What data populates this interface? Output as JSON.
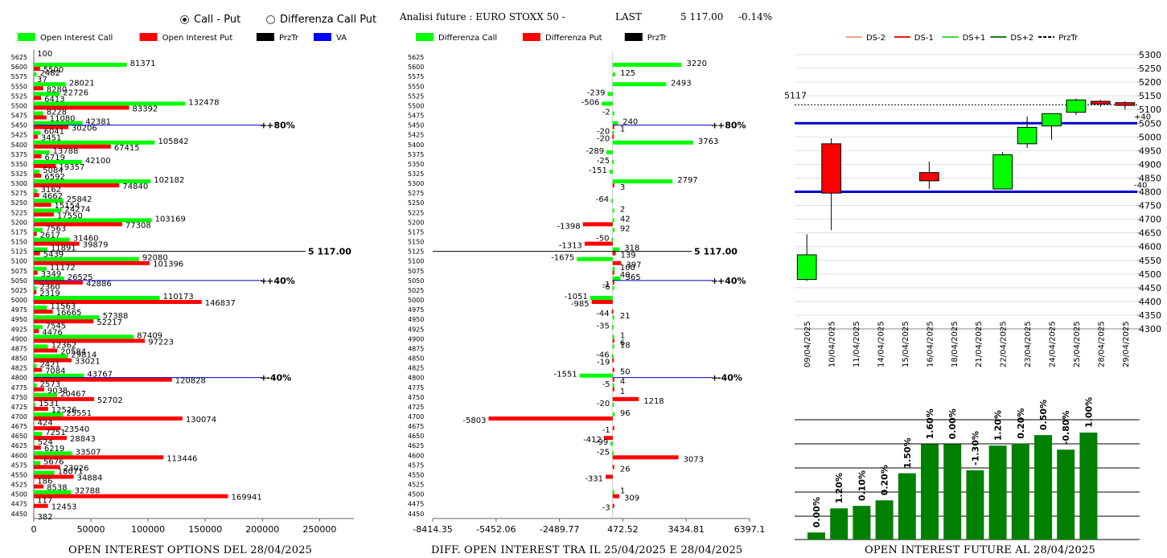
{
  "controls": {
    "radio_call_put": "Call - Put",
    "radio_diff": "Differenza Call Put",
    "selected": "call_put"
  },
  "header": {
    "title": "Analisi future : EURO STOXX 50 -",
    "last_label": "LAST",
    "last_value": "5 117.00",
    "change": "-0.14%"
  },
  "colors": {
    "call": "#00ff00",
    "put": "#ff0000",
    "prztr": "#000000",
    "va": "#0000ff",
    "future": "#008000",
    "lineblue": "#0000cc"
  },
  "chart_data": [
    {
      "type": "bar",
      "orientation": "horizontal",
      "title": "OPEN INTEREST OPTIONS DEL 28/04/2025",
      "legend": [
        "Open Interest Call",
        "Open Interest Put",
        "PrzTr",
        "VA"
      ],
      "strikes": [
        "5625",
        "5600",
        "5575",
        "5550",
        "5525",
        "5500",
        "5475",
        "5450",
        "5425",
        "5400",
        "5375",
        "5350",
        "5325",
        "5300",
        "5275",
        "5250",
        "5225",
        "5200",
        "5175",
        "5150",
        "5125",
        "5100",
        "5075",
        "5050",
        "5025",
        "5000",
        "4975",
        "4950",
        "4925",
        "4900",
        "4875",
        "4850",
        "4825",
        "4800",
        "4775",
        "4750",
        "4725",
        "4700",
        "4675",
        "4650",
        "4625",
        "4600",
        "4575",
        "4550",
        "4525",
        "4500",
        "4475",
        "4450"
      ],
      "series": [
        {
          "name": "Open Interest Call",
          "values": [
            100,
            81371,
            2482,
            28021,
            22726,
            132478,
            8228,
            42381,
            6041,
            105842,
            13788,
            42100,
            5084,
            102182,
            3162,
            25842,
            24274,
            103169,
            7563,
            31460,
            11891,
            92080,
            11172,
            26525,
            2360,
            110173,
            11563,
            57388,
            7545,
            87409,
            12362,
            29814,
            2421,
            43767,
            2573,
            20467,
            1531,
            25551,
            424,
            7251,
            524,
            33507,
            5676,
            18071,
            186,
            32788,
            117,
            0
          ]
        },
        {
          "name": "Open Interest Put",
          "values": [
            0,
            5500,
            37,
            8280,
            6413,
            83392,
            11080,
            30206,
            3451,
            67415,
            6719,
            19357,
            6592,
            74840,
            4662,
            15154,
            17550,
            77308,
            2617,
            39879,
            5439,
            101396,
            3349,
            42886,
            2319,
            146837,
            16665,
            52217,
            4476,
            97223,
            20584,
            33021,
            7084,
            120828,
            9038,
            52702,
            12526,
            130074,
            23540,
            28843,
            6219,
            113446,
            23026,
            34884,
            8538,
            169941,
            12453,
            382
          ]
        }
      ],
      "xticks": [
        "0",
        "50000",
        "100000",
        "150000",
        "200000",
        "250000"
      ],
      "xlim": [
        0,
        280000
      ],
      "annotations": [
        {
          "strike": "5450",
          "value": 200000,
          "label": "+80%"
        },
        {
          "strike": "5050",
          "value": 200000,
          "label": "+40%"
        },
        {
          "strike": "4800",
          "value": 200000,
          "label": "-40%"
        },
        {
          "strike": "5125",
          "value": 220000,
          "label": "5 117.00"
        }
      ]
    },
    {
      "type": "bar",
      "orientation": "horizontal",
      "title": "DIFF. OPEN INTEREST TRA IL 25/04/2025 E 28/04/2025",
      "legend": [
        "Differenza Call",
        "Differenza Put",
        "PrzTr"
      ],
      "strikes": [
        "5625",
        "5600",
        "5575",
        "5550",
        "5525",
        "5500",
        "5475",
        "5450",
        "5425",
        "5400",
        "5375",
        "5350",
        "5325",
        "5300",
        "5275",
        "5250",
        "5225",
        "5200",
        "5175",
        "5150",
        "5125",
        "5100",
        "5075",
        "5050",
        "5025",
        "5000",
        "4975",
        "4950",
        "4925",
        "4900",
        "4875",
        "4850",
        "4825",
        "4800",
        "4775",
        "4750",
        "4725",
        "4700",
        "4675",
        "4650",
        "4625",
        "4600",
        "4575",
        "4550",
        "4525",
        "4500",
        "4475",
        "4450"
      ],
      "labels_call": [
        null,
        "3220",
        "125",
        "2493",
        "-239",
        "-506",
        "-2",
        "240",
        "-20",
        "3763",
        "-289",
        "-25",
        "-151",
        "2797",
        null,
        "-64",
        "2",
        "42",
        "92",
        "-50",
        "318",
        "-1675",
        "100",
        "365",
        "-6",
        "-1051",
        null,
        "21",
        "-35",
        "1",
        "18",
        "-46",
        null,
        "-1551",
        "-5",
        null,
        "-20",
        "96",
        null,
        null,
        "-99",
        "-25",
        null,
        null,
        null,
        "1",
        null,
        null
      ],
      "labels_put": [
        null,
        null,
        null,
        null,
        null,
        null,
        null,
        "1",
        "-20",
        null,
        null,
        null,
        null,
        "3",
        null,
        null,
        null,
        "-1398",
        null,
        "-1313",
        "139",
        "397",
        "40",
        "-1",
        null,
        "-985",
        "-44",
        null,
        null,
        "6",
        null,
        "-19",
        "50",
        "4",
        "1",
        "1218",
        null,
        "-5803",
        "-1",
        "-412",
        null,
        "3073",
        "26",
        "-331",
        null,
        "309",
        "-3",
        null
      ],
      "call_values": [
        0,
        3220,
        125,
        2493,
        -239,
        -506,
        -2,
        240,
        -20,
        3763,
        -289,
        -25,
        -151,
        2797,
        0,
        -64,
        2,
        42,
        92,
        -50,
        318,
        -1675,
        100,
        365,
        -6,
        -1051,
        0,
        21,
        -35,
        1,
        18,
        -46,
        0,
        -1551,
        -5,
        0,
        -20,
        96,
        0,
        0,
        -99,
        -25,
        0,
        0,
        0,
        1,
        0,
        0
      ],
      "put_values": [
        0,
        0,
        0,
        0,
        0,
        0,
        0,
        1,
        -20,
        0,
        0,
        0,
        0,
        3,
        0,
        0,
        0,
        -1398,
        0,
        -1313,
        139,
        397,
        40,
        -1,
        0,
        -985,
        -44,
        0,
        0,
        6,
        0,
        -19,
        50,
        4,
        1,
        1218,
        0,
        -5803,
        -1,
        -412,
        0,
        3073,
        26,
        -331,
        0,
        309,
        -3,
        0
      ],
      "xticks": [
        "-8414.35",
        "-5452.06",
        "-2489.77",
        "472.52",
        "3434.81",
        "6397.1"
      ],
      "xlim": [
        -8414.35,
        6397.1
      ],
      "annotations": [
        {
          "strike": "5450",
          "label": "+80%"
        },
        {
          "strike": "5050",
          "label": "+40%"
        },
        {
          "strike": "4800",
          "label": "-40%"
        },
        {
          "strike": "5125",
          "label": "5 117.00"
        }
      ]
    },
    {
      "type": "candlestick",
      "legend": [
        "DS-2",
        "DS-1",
        "DS+1",
        "DS+2",
        "PrzTr"
      ],
      "dates": [
        "09/04/2025",
        "10/04/2025",
        "11/04/2025",
        "14/04/2025",
        "15/04/2025",
        "16/04/2025",
        "18/04/2025",
        "21/04/2025",
        "22/04/2025",
        "23/04/2025",
        "24/04/2025",
        "25/04/2025",
        "28/04/2025",
        "29/04/2025"
      ],
      "candles": [
        {
          "date": "09/04/2025",
          "open": 4480,
          "close": 4570,
          "high": 4645,
          "low": 4475
        },
        {
          "date": "10/04/2025",
          "open": 4975,
          "close": 4795,
          "high": 4995,
          "low": 4660
        },
        {
          "date": "16/04/2025",
          "open": 4870,
          "close": 4840,
          "high": 4910,
          "low": 4810
        },
        {
          "date": "22/04/2025",
          "open": 4810,
          "close": 4935,
          "high": 4945,
          "low": 4810
        },
        {
          "date": "23/04/2025",
          "open": 4975,
          "close": 5035,
          "high": 5075,
          "low": 4960
        },
        {
          "date": "24/04/2025",
          "open": 5040,
          "close": 5085,
          "high": 5085,
          "low": 4990
        },
        {
          "date": "25/04/2025",
          "open": 5090,
          "close": 5135,
          "high": 5140,
          "low": 5080
        },
        {
          "date": "28/04/2025",
          "open": 5130,
          "close": 5120,
          "high": 5135,
          "low": 5110
        },
        {
          "date": "29/04/2025",
          "open": 5125,
          "close": 5115,
          "high": 5130,
          "low": 5100
        }
      ],
      "yticks": [
        "5300",
        "5250",
        "5200",
        "5150",
        "5100",
        "5050",
        "5000",
        "4950",
        "4900",
        "4850",
        "4800",
        "4750",
        "4700",
        "4650",
        "4600",
        "4550",
        "4500",
        "4450",
        "4400",
        "4350",
        "4300"
      ],
      "ylim": [
        4300,
        5300
      ],
      "last_label": "5117",
      "last": 5117,
      "hlines": [
        {
          "value": 5050,
          "label": "+40"
        },
        {
          "value": 4800,
          "label": "-40"
        }
      ]
    },
    {
      "type": "bar",
      "title": "OPEN INTEREST FUTURE AL 28/04/2025",
      "labels": [
        "0.00%",
        "1.20%",
        "0.10%",
        "0.20%",
        "1.50%",
        "1.60%",
        "0.00%",
        "-1.30%",
        "1.20%",
        "0.20%",
        "0.50%",
        "-0.80%",
        "1.00%"
      ],
      "values": [
        0.07,
        0.31,
        0.335,
        0.39,
        0.66,
        0.95,
        0.95,
        0.69,
        0.935,
        0.955,
        1.04,
        0.895,
        1.065
      ]
    }
  ]
}
